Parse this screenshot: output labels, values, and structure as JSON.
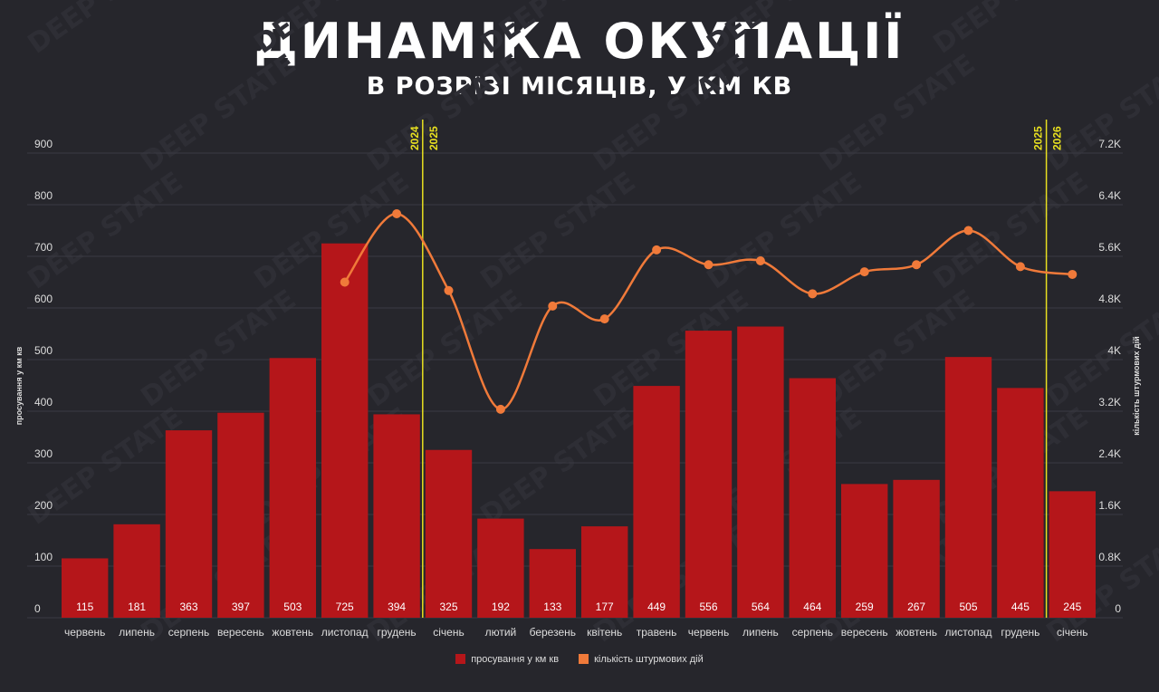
{
  "chart_data": {
    "type": "bar+line",
    "title": "ДИНАМІКА ОКУПАЦІЇ",
    "subtitle": "В РОЗРІЗІ МІСЯЦІВ, У КМ КВ",
    "categories": [
      "червень",
      "липень",
      "серпень",
      "вересень",
      "жовтень",
      "листопад",
      "грудень",
      "січень",
      "лютий",
      "березень",
      "квітень",
      "травень",
      "червень",
      "липень",
      "серпень",
      "вересень",
      "жовтень",
      "листопад",
      "грудень",
      "січень"
    ],
    "series": [
      {
        "name": "просування у км кв",
        "type": "bar",
        "axis": "left",
        "color": "#b5161a",
        "values": [
          115,
          181,
          363,
          397,
          503,
          725,
          394,
          325,
          192,
          133,
          177,
          449,
          556,
          564,
          464,
          259,
          267,
          505,
          445,
          245
        ]
      },
      {
        "name": "кількість штурмових дій",
        "type": "line",
        "axis": "right",
        "color": "#f07a3a",
        "values": [
          null,
          null,
          null,
          null,
          null,
          5200,
          6260,
          5070,
          3230,
          4830,
          4630,
          5700,
          5470,
          5530,
          5020,
          5360,
          5470,
          6000,
          5440,
          5320
        ]
      }
    ],
    "ylabel": "просування у км кв",
    "y2label": "кількість штурмових дій",
    "ylim": [
      0,
      900
    ],
    "yticks": [
      "0",
      "100",
      "200",
      "300",
      "400",
      "500",
      "600",
      "700",
      "800",
      "900"
    ],
    "y2lim": [
      0,
      7200
    ],
    "y2ticks": [
      "0",
      "0.8K",
      "1.6K",
      "2.4K",
      "3.2K",
      "4K",
      "4.8K",
      "5.6K",
      "6.4K",
      "7.2K"
    ],
    "grid": true,
    "legend": "bottom",
    "year_markers": [
      {
        "after_index": 6,
        "left": "2024",
        "right": "2025"
      },
      {
        "after_index": 18,
        "left": "2025",
        "right": "2026"
      }
    ],
    "marker_color": "#e8e020",
    "watermark": "DEEP STATE"
  }
}
